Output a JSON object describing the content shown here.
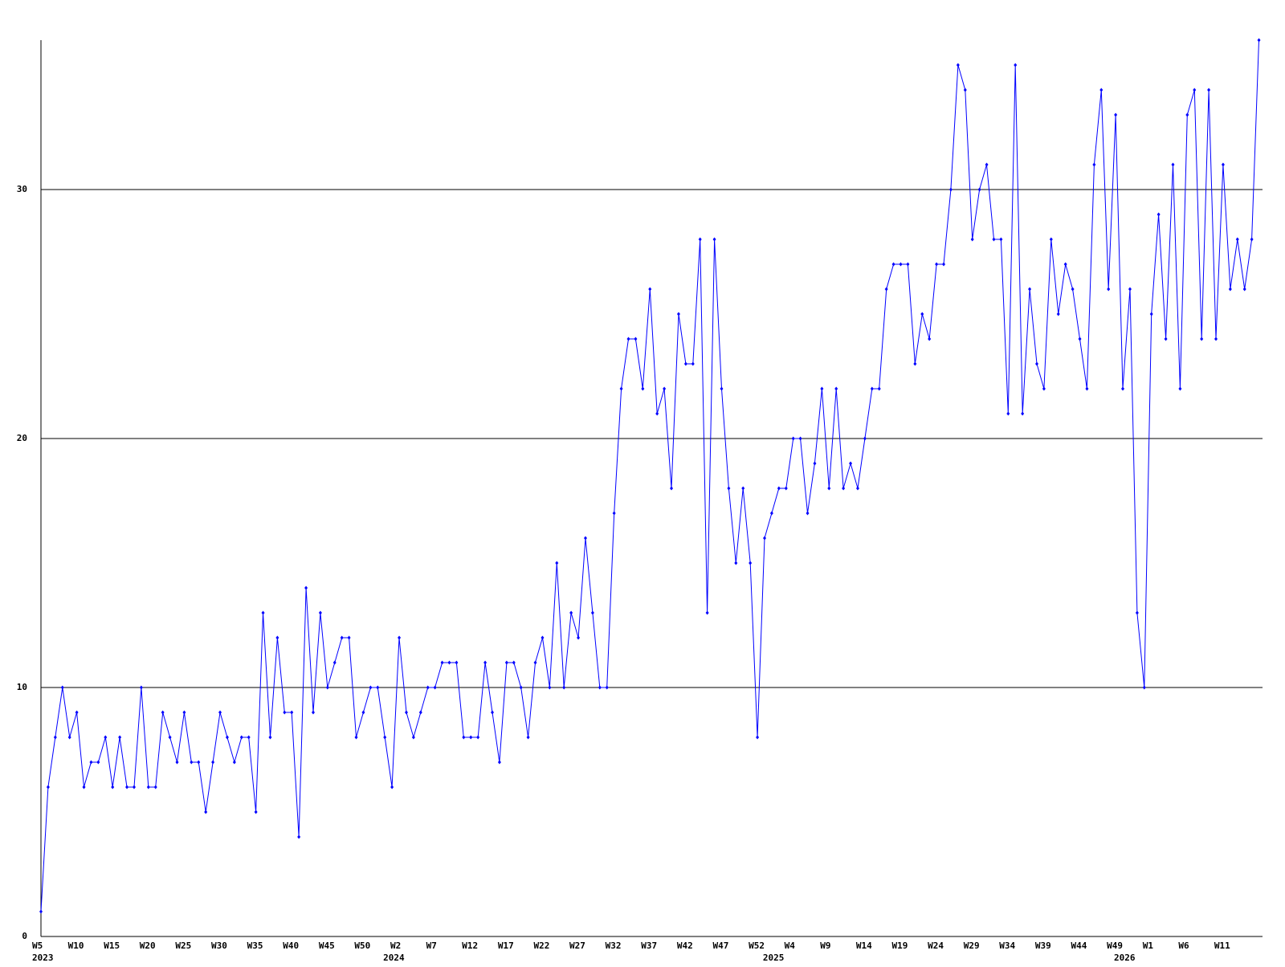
{
  "chart_data": {
    "type": "line",
    "categories": [
      "W5",
      null,
      null,
      null,
      null,
      "W10",
      null,
      null,
      null,
      null,
      "W15",
      null,
      null,
      null,
      null,
      "W20",
      null,
      null,
      null,
      null,
      "W25",
      null,
      null,
      null,
      null,
      "W30",
      null,
      null,
      null,
      null,
      "W35",
      null,
      null,
      null,
      null,
      "W40",
      null,
      null,
      null,
      null,
      "W45",
      null,
      null,
      null,
      null,
      "W50",
      null,
      null,
      null,
      null,
      "W2",
      null,
      null,
      null,
      null,
      "W7",
      null,
      null,
      null,
      null,
      "W12",
      null,
      null,
      null,
      null,
      "W17",
      null,
      null,
      null,
      null,
      "W22",
      null,
      null,
      null,
      null,
      "W27",
      null,
      null,
      null,
      null,
      "W32",
      null,
      null,
      null,
      null,
      "W37",
      null,
      null,
      null,
      null,
      "W42",
      null,
      null,
      null,
      null,
      "W47",
      null,
      null,
      null,
      null,
      "W52",
      null,
      null,
      null,
      null,
      "W4",
      null,
      null,
      null,
      null,
      "W9",
      null,
      null,
      null,
      null,
      "W14",
      null,
      null,
      null,
      null,
      "W19",
      null,
      null,
      null,
      null,
      "W24",
      null,
      null,
      null,
      null,
      "W29",
      null,
      null,
      null,
      null,
      "W34",
      null,
      null,
      null,
      null,
      "W39",
      null,
      null,
      null,
      null,
      "W44",
      null,
      null,
      null,
      null,
      "W49",
      null,
      null,
      null,
      null,
      "W1",
      null,
      null,
      null,
      null,
      "W6",
      null,
      null,
      null,
      null,
      "W11",
      null,
      null,
      null,
      null,
      null
    ],
    "year_labels": [
      "2023",
      null,
      null,
      null,
      null,
      null,
      null,
      null,
      null,
      null,
      null,
      null,
      null,
      null,
      null,
      null,
      null,
      null,
      null,
      null,
      null,
      null,
      null,
      null,
      null,
      null,
      null,
      null,
      null,
      null,
      null,
      null,
      null,
      null,
      null,
      null,
      null,
      null,
      null,
      null,
      null,
      null,
      null,
      null,
      null,
      null,
      null,
      null,
      null,
      "2024",
      null,
      null,
      null,
      null,
      null,
      null,
      null,
      null,
      null,
      null,
      null,
      null,
      null,
      null,
      null,
      null,
      null,
      null,
      null,
      null,
      null,
      null,
      null,
      null,
      null,
      null,
      null,
      null,
      null,
      null,
      null,
      null,
      null,
      null,
      null,
      null,
      null,
      null,
      null,
      null,
      null,
      null,
      null,
      null,
      null,
      null,
      null,
      null,
      null,
      null,
      null,
      null,
      "2025",
      null,
      null,
      null,
      null,
      null,
      null,
      null,
      null,
      null,
      null,
      null,
      null,
      null,
      null,
      null,
      null,
      null,
      null,
      null,
      null,
      null,
      null,
      null,
      null,
      null,
      null,
      null,
      null,
      null,
      null,
      null,
      null,
      null,
      null,
      null,
      null,
      null,
      null,
      null,
      null,
      null,
      null,
      null,
      null,
      null,
      null,
      null,
      null,
      "2026",
      null,
      null,
      null,
      null,
      null,
      null,
      null,
      null,
      null,
      null,
      null,
      null,
      null,
      null,
      null
    ],
    "series": [
      {
        "color": "#0000ff",
        "values": [
          1,
          6,
          8,
          10,
          8,
          9,
          6,
          7,
          7,
          8,
          6,
          8,
          6,
          6,
          10,
          6,
          6,
          9,
          8,
          7,
          9,
          7,
          7,
          5,
          7,
          9,
          8,
          7,
          8,
          8,
          5,
          13,
          8,
          12,
          9,
          9,
          4,
          14,
          9,
          13,
          10,
          11,
          12,
          12,
          8,
          9,
          10,
          10,
          8,
          6,
          12,
          9,
          8,
          9,
          10,
          10,
          11,
          11,
          11,
          8,
          8,
          8,
          11,
          9,
          7,
          11,
          11,
          10,
          8,
          11,
          12,
          10,
          15,
          10,
          13,
          12,
          16,
          13,
          10,
          10,
          17,
          22,
          24,
          24,
          22,
          26,
          21,
          22,
          18,
          25,
          23,
          23,
          28,
          13,
          28,
          22,
          18,
          15,
          18,
          15,
          8,
          16,
          17,
          18,
          18,
          20,
          20,
          17,
          19,
          22,
          18,
          22,
          18,
          19,
          18,
          20,
          22,
          22,
          26,
          27,
          27,
          27,
          23,
          25,
          24,
          27,
          27,
          30,
          35,
          34,
          28,
          30,
          31,
          28,
          28,
          21,
          35,
          21,
          26,
          23,
          22,
          28,
          25,
          27,
          26,
          24,
          22,
          31,
          34,
          26,
          33,
          22,
          26,
          13,
          10,
          25,
          29,
          24,
          31,
          22,
          33,
          34,
          24,
          34,
          24,
          31,
          26,
          28,
          26,
          28,
          36
        ]
      }
    ],
    "ylim": [
      0,
      36
    ],
    "yticks": [
      0,
      10,
      20,
      30
    ],
    "grid": true
  }
}
